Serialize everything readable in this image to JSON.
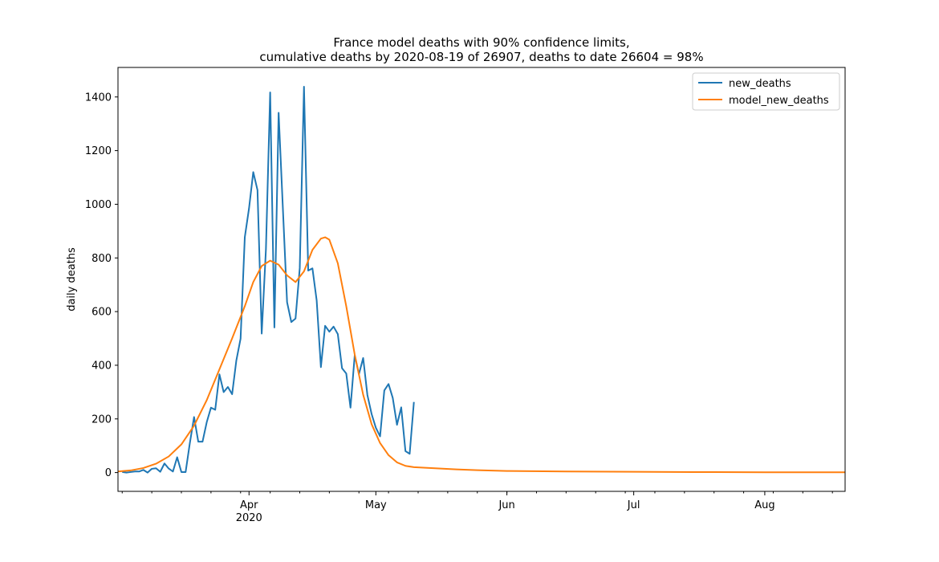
{
  "chart_data": {
    "type": "line",
    "title": [
      "France model deaths with 90% confidence limits,",
      "cumulative deaths by 2020-08-19 of 26907, deaths to date 26604 = 98%"
    ],
    "xlabel": "",
    "ylabel": "daily deaths",
    "xlim": [
      "2020-03-01",
      "2020-08-20"
    ],
    "ylim": [
      -70,
      1510
    ],
    "grid": false,
    "legend_position": "top-right",
    "x_ticks": [
      {
        "date": "2020-04-01",
        "label": "Apr",
        "sublabel": "2020"
      },
      {
        "date": "2020-05-01",
        "label": "May",
        "sublabel": ""
      },
      {
        "date": "2020-06-01",
        "label": "Jun",
        "sublabel": ""
      },
      {
        "date": "2020-07-01",
        "label": "Jul",
        "sublabel": ""
      },
      {
        "date": "2020-08-01",
        "label": "Aug",
        "sublabel": ""
      }
    ],
    "y_ticks": [
      0,
      200,
      400,
      600,
      800,
      1000,
      1200,
      1400
    ],
    "series": [
      {
        "name": "new_deaths",
        "color": "#1f77b4",
        "x": [
          "2020-03-02",
          "2020-03-03",
          "2020-03-04",
          "2020-03-05",
          "2020-03-06",
          "2020-03-07",
          "2020-03-08",
          "2020-03-09",
          "2020-03-10",
          "2020-03-11",
          "2020-03-12",
          "2020-03-13",
          "2020-03-14",
          "2020-03-15",
          "2020-03-16",
          "2020-03-17",
          "2020-03-18",
          "2020-03-19",
          "2020-03-20",
          "2020-03-21",
          "2020-03-22",
          "2020-03-23",
          "2020-03-24",
          "2020-03-25",
          "2020-03-26",
          "2020-03-27",
          "2020-03-28",
          "2020-03-29",
          "2020-03-30",
          "2020-03-31",
          "2020-04-01",
          "2020-04-02",
          "2020-04-03",
          "2020-04-04",
          "2020-04-05",
          "2020-04-06",
          "2020-04-07",
          "2020-04-08",
          "2020-04-09",
          "2020-04-10",
          "2020-04-11",
          "2020-04-12",
          "2020-04-13",
          "2020-04-14",
          "2020-04-15",
          "2020-04-16",
          "2020-04-17",
          "2020-04-18",
          "2020-04-19",
          "2020-04-20",
          "2020-04-21",
          "2020-04-22",
          "2020-04-23",
          "2020-04-24",
          "2020-04-25",
          "2020-04-26",
          "2020-04-27",
          "2020-04-28",
          "2020-04-29",
          "2020-04-30",
          "2020-05-01",
          "2020-05-02",
          "2020-05-03",
          "2020-05-04",
          "2020-05-05",
          "2020-05-06",
          "2020-05-07",
          "2020-05-08",
          "2020-05-09",
          "2020-05-10",
          "2020-05-11"
        ],
        "values": [
          2,
          0,
          2,
          4,
          4,
          10,
          0,
          14,
          16,
          3,
          34,
          15,
          4,
          57,
          2,
          2,
          110,
          207,
          115,
          115,
          188,
          242,
          234,
          366,
          300,
          319,
          292,
          418,
          499,
          877,
          985,
          1120,
          1053,
          518,
          833,
          1417,
          541,
          1341,
          987,
          635,
          561,
          574,
          762,
          1438,
          753,
          761,
          642,
          393,
          547,
          525,
          544,
          516,
          389,
          369,
          242,
          437,
          367,
          427,
          289,
          218,
          167,
          135,
          306,
          330,
          278,
          178,
          243,
          80,
          70,
          263,
          null
        ]
      },
      {
        "name": "model_new_deaths",
        "color": "#ff7f0e",
        "x": [
          "2020-03-01",
          "2020-03-04",
          "2020-03-07",
          "2020-03-10",
          "2020-03-13",
          "2020-03-16",
          "2020-03-19",
          "2020-03-22",
          "2020-03-25",
          "2020-03-28",
          "2020-03-31",
          "2020-04-02",
          "2020-04-04",
          "2020-04-06",
          "2020-04-08",
          "2020-04-10",
          "2020-04-12",
          "2020-04-14",
          "2020-04-16",
          "2020-04-18",
          "2020-04-19",
          "2020-04-20",
          "2020-04-22",
          "2020-04-24",
          "2020-04-26",
          "2020-04-28",
          "2020-04-30",
          "2020-05-02",
          "2020-05-04",
          "2020-05-06",
          "2020-05-08",
          "2020-05-10",
          "2020-05-15",
          "2020-05-20",
          "2020-05-25",
          "2020-06-01",
          "2020-06-15",
          "2020-07-01",
          "2020-07-15",
          "2020-08-01",
          "2020-08-20"
        ],
        "values": [
          4,
          8,
          17,
          33,
          60,
          105,
          175,
          270,
          385,
          500,
          620,
          710,
          770,
          790,
          775,
          735,
          710,
          750,
          830,
          872,
          877,
          868,
          780,
          620,
          440,
          290,
          180,
          110,
          65,
          38,
          25,
          20,
          16,
          12,
          9,
          6,
          4,
          3,
          2,
          1,
          1
        ]
      }
    ]
  }
}
